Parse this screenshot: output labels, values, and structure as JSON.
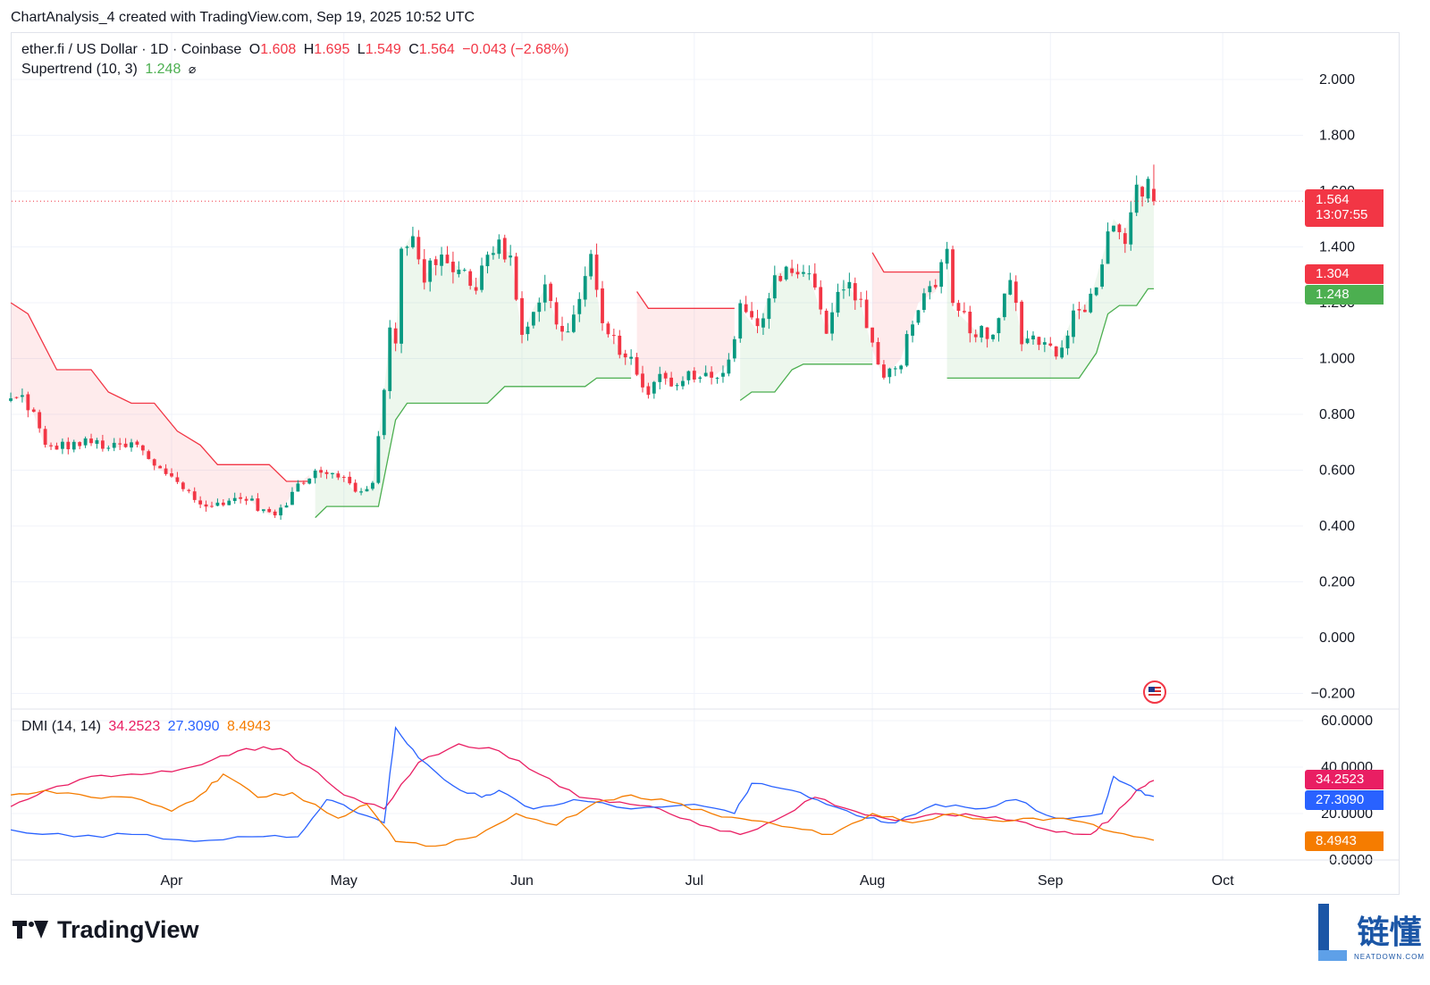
{
  "caption": "ChartAnalysis_4 created with TradingView.com, Sep 19, 2025 10:52 UTC",
  "legend": {
    "symbol": "ether.fi / US Dollar · 1D · Coinbase",
    "o_label": "O",
    "o_value": "1.608",
    "h_label": "H",
    "h_value": "1.695",
    "l_label": "L",
    "l_value": "1.549",
    "c_label": "C",
    "c_value": "1.564",
    "change": "−0.043 (−2.68%)",
    "supertrend_label": "Supertrend (10, 3)",
    "supertrend_value": "1.248",
    "supertrend_icon": "hidden-eye-icon"
  },
  "dmi_legend": {
    "label": "DMI (14, 14)",
    "plus_di": "34.2523",
    "minus_di": "27.3090",
    "adx": "8.4943"
  },
  "badges": {
    "price": "1.564",
    "countdown": "13:07:55",
    "supertrend_red": "1.304",
    "supertrend_green": "1.248",
    "plus_di": "34.2523",
    "minus_di": "27.3090",
    "adx": "8.4943"
  },
  "colors": {
    "up": "#089981",
    "down": "#f23645",
    "st_up": "#4caf50",
    "st_down": "#f23645",
    "plus_di": "#e91e63",
    "minus_di": "#2962ff",
    "adx": "#f57c00"
  },
  "brand": {
    "name": "TradingView"
  },
  "watermark": {
    "cn": "链懂",
    "en": "NEATDOWN.COM"
  },
  "chart_data": [
    {
      "type": "candlestick",
      "title": "ether.fi / US Dollar · 1D · Coinbase",
      "x_start": "2025-03-04",
      "x_end": "2025-09-19",
      "x_ticks": [
        "Apr",
        "May",
        "Jun",
        "Jul",
        "Aug",
        "Sep",
        "Oct"
      ],
      "y_ticks": [
        "2.000",
        "1.800",
        "1.600",
        "1.400",
        "1.200",
        "1.000",
        "0.800",
        "0.600",
        "0.400",
        "0.200",
        "0.000",
        "−0.200"
      ],
      "ylim": [
        -0.2,
        2.0
      ],
      "last_candle": {
        "open": 1.608,
        "high": 1.695,
        "low": 1.549,
        "close": 1.564
      },
      "close_anchors": [
        [
          "2025-03-04",
          0.85
        ],
        [
          "2025-03-06",
          0.86
        ],
        [
          "2025-03-08",
          0.8
        ],
        [
          "2025-03-10",
          0.68
        ],
        [
          "2025-03-14",
          0.69
        ],
        [
          "2025-03-18",
          0.7
        ],
        [
          "2025-03-22",
          0.68
        ],
        [
          "2025-03-26",
          0.69
        ],
        [
          "2025-03-29",
          0.61
        ],
        [
          "2025-04-01",
          0.58
        ],
        [
          "2025-04-04",
          0.52
        ],
        [
          "2025-04-07",
          0.46
        ],
        [
          "2025-04-10",
          0.49
        ],
        [
          "2025-04-14",
          0.5
        ],
        [
          "2025-04-18",
          0.44
        ],
        [
          "2025-04-20",
          0.45
        ],
        [
          "2025-04-23",
          0.55
        ],
        [
          "2025-04-26",
          0.6
        ],
        [
          "2025-04-30",
          0.59
        ],
        [
          "2025-05-03",
          0.52
        ],
        [
          "2025-05-06",
          0.55
        ],
        [
          "2025-05-08",
          0.88
        ],
        [
          "2025-05-09",
          1.1
        ],
        [
          "2025-05-10",
          1.05
        ],
        [
          "2025-05-11",
          1.38
        ],
        [
          "2025-05-13",
          1.45
        ],
        [
          "2025-05-15",
          1.3
        ],
        [
          "2025-05-18",
          1.35
        ],
        [
          "2025-05-21",
          1.33
        ],
        [
          "2025-05-24",
          1.27
        ],
        [
          "2025-05-27",
          1.4
        ],
        [
          "2025-05-30",
          1.38
        ],
        [
          "2025-06-01",
          1.08
        ],
        [
          "2025-06-03",
          1.18
        ],
        [
          "2025-06-05",
          1.25
        ],
        [
          "2025-06-08",
          1.08
        ],
        [
          "2025-06-11",
          1.2
        ],
        [
          "2025-06-13",
          1.38
        ],
        [
          "2025-06-15",
          1.1
        ],
        [
          "2025-06-18",
          1.04
        ],
        [
          "2025-06-20",
          0.98
        ],
        [
          "2025-06-23",
          0.88
        ],
        [
          "2025-06-25",
          0.93
        ],
        [
          "2025-06-28",
          0.9
        ],
        [
          "2025-07-01",
          0.95
        ],
        [
          "2025-07-04",
          0.93
        ],
        [
          "2025-07-07",
          0.98
        ],
        [
          "2025-07-09",
          1.18
        ],
        [
          "2025-07-12",
          1.1
        ],
        [
          "2025-07-15",
          1.3
        ],
        [
          "2025-07-18",
          1.33
        ],
        [
          "2025-07-21",
          1.3
        ],
        [
          "2025-07-24",
          1.1
        ],
        [
          "2025-07-27",
          1.28
        ],
        [
          "2025-07-30",
          1.2
        ],
        [
          "2025-08-01",
          1.03
        ],
        [
          "2025-08-03",
          0.93
        ],
        [
          "2025-08-06",
          1.0
        ],
        [
          "2025-08-09",
          1.2
        ],
        [
          "2025-08-12",
          1.24
        ],
        [
          "2025-08-14",
          1.38
        ],
        [
          "2025-08-15",
          1.18
        ],
        [
          "2025-08-19",
          1.1
        ],
        [
          "2025-08-22",
          1.06
        ],
        [
          "2025-08-25",
          1.29
        ],
        [
          "2025-08-27",
          1.08
        ],
        [
          "2025-08-30",
          1.07
        ],
        [
          "2025-09-02",
          1.02
        ],
        [
          "2025-09-05",
          1.15
        ],
        [
          "2025-09-08",
          1.22
        ],
        [
          "2025-09-10",
          1.36
        ],
        [
          "2025-09-12",
          1.5
        ],
        [
          "2025-09-14",
          1.45
        ],
        [
          "2025-09-16",
          1.63
        ],
        [
          "2025-09-18",
          1.608
        ],
        [
          "2025-09-19",
          1.564
        ]
      ],
      "supertrend": [
        {
          "trend": "down",
          "points": [
            [
              "2025-03-04",
              1.2
            ],
            [
              "2025-03-07",
              1.16
            ],
            [
              "2025-03-12",
              0.96
            ],
            [
              "2025-03-18",
              0.96
            ],
            [
              "2025-03-21",
              0.88
            ],
            [
              "2025-03-25",
              0.84
            ],
            [
              "2025-03-29",
              0.84
            ],
            [
              "2025-04-02",
              0.74
            ],
            [
              "2025-04-06",
              0.69
            ],
            [
              "2025-04-09",
              0.62
            ],
            [
              "2025-04-18",
              0.62
            ],
            [
              "2025-04-21",
              0.56
            ],
            [
              "2025-04-25",
              0.56
            ]
          ]
        },
        {
          "trend": "up",
          "points": [
            [
              "2025-04-26",
              0.43
            ],
            [
              "2025-04-28",
              0.47
            ],
            [
              "2025-05-07",
              0.47
            ],
            [
              "2025-05-10",
              0.78
            ],
            [
              "2025-05-12",
              0.84
            ],
            [
              "2025-05-26",
              0.84
            ],
            [
              "2025-05-29",
              0.9
            ],
            [
              "2025-06-12",
              0.9
            ],
            [
              "2025-06-14",
              0.93
            ],
            [
              "2025-06-20",
              0.93
            ]
          ]
        },
        {
          "trend": "down",
          "points": [
            [
              "2025-06-21",
              1.24
            ],
            [
              "2025-06-23",
              1.18
            ],
            [
              "2025-07-08",
              1.18
            ]
          ]
        },
        {
          "trend": "up",
          "points": [
            [
              "2025-07-09",
              0.85
            ],
            [
              "2025-07-11",
              0.88
            ],
            [
              "2025-07-15",
              0.88
            ],
            [
              "2025-07-18",
              0.96
            ],
            [
              "2025-07-20",
              0.98
            ],
            [
              "2025-08-01",
              0.98
            ]
          ]
        },
        {
          "trend": "down",
          "points": [
            [
              "2025-08-01",
              1.38
            ],
            [
              "2025-08-03",
              1.31
            ],
            [
              "2025-08-13",
              1.31
            ]
          ]
        },
        {
          "trend": "up",
          "points": [
            [
              "2025-08-14",
              0.93
            ],
            [
              "2025-09-06",
              0.93
            ],
            [
              "2025-09-09",
              1.02
            ],
            [
              "2025-09-11",
              1.16
            ],
            [
              "2025-09-13",
              1.19
            ],
            [
              "2025-09-16",
              1.19
            ],
            [
              "2025-09-18",
              1.25
            ],
            [
              "2025-09-19",
              1.25
            ]
          ]
        }
      ]
    },
    {
      "type": "line",
      "title": "DMI (14, 14)",
      "y_ticks": [
        "60.0000",
        "40.0000",
        "20.0000",
        "0.0000"
      ],
      "ylim": [
        0,
        60
      ],
      "series": [
        {
          "name": "34.2523",
          "color": "#e91e63",
          "points": [
            [
              "2025-03-04",
              23
            ],
            [
              "2025-03-10",
              30
            ],
            [
              "2025-03-18",
              36
            ],
            [
              "2025-03-25",
              37
            ],
            [
              "2025-04-01",
              38
            ],
            [
              "2025-04-08",
              43
            ],
            [
              "2025-04-14",
              48
            ],
            [
              "2025-04-20",
              48
            ],
            [
              "2025-04-25",
              40
            ],
            [
              "2025-05-01",
              28
            ],
            [
              "2025-05-08",
              22
            ],
            [
              "2025-05-14",
              42
            ],
            [
              "2025-05-21",
              50
            ],
            [
              "2025-05-28",
              47
            ],
            [
              "2025-06-04",
              37
            ],
            [
              "2025-06-11",
              27
            ],
            [
              "2025-06-18",
              25
            ],
            [
              "2025-06-25",
              22
            ],
            [
              "2025-07-02",
              15
            ],
            [
              "2025-07-09",
              11
            ],
            [
              "2025-07-15",
              17
            ],
            [
              "2025-07-22",
              27
            ],
            [
              "2025-07-29",
              21
            ],
            [
              "2025-08-05",
              17
            ],
            [
              "2025-08-12",
              20
            ],
            [
              "2025-08-19",
              19
            ],
            [
              "2025-08-26",
              17
            ],
            [
              "2025-09-02",
              12
            ],
            [
              "2025-09-08",
              11
            ],
            [
              "2025-09-12",
              19
            ],
            [
              "2025-09-16",
              30
            ],
            [
              "2025-09-19",
              34.2523
            ]
          ]
        },
        {
          "name": "27.3090",
          "color": "#2962ff",
          "points": [
            [
              "2025-03-04",
              13
            ],
            [
              "2025-03-15",
              10
            ],
            [
              "2025-03-25",
              11
            ],
            [
              "2025-04-05",
              8
            ],
            [
              "2025-04-15",
              10
            ],
            [
              "2025-04-23",
              10
            ],
            [
              "2025-04-28",
              26
            ],
            [
              "2025-05-02",
              22
            ],
            [
              "2025-05-08",
              16
            ],
            [
              "2025-05-10",
              57
            ],
            [
              "2025-05-14",
              44
            ],
            [
              "2025-05-20",
              32
            ],
            [
              "2025-05-25",
              27
            ],
            [
              "2025-05-28",
              30
            ],
            [
              "2025-06-03",
              22
            ],
            [
              "2025-06-10",
              26
            ],
            [
              "2025-06-20",
              22
            ],
            [
              "2025-07-01",
              24
            ],
            [
              "2025-07-08",
              20
            ],
            [
              "2025-07-11",
              33
            ],
            [
              "2025-07-18",
              30
            ],
            [
              "2025-07-24",
              24
            ],
            [
              "2025-07-31",
              18
            ],
            [
              "2025-08-05",
              16
            ],
            [
              "2025-08-12",
              24
            ],
            [
              "2025-08-19",
              22
            ],
            [
              "2025-08-26",
              26
            ],
            [
              "2025-09-02",
              18
            ],
            [
              "2025-09-10",
              20
            ],
            [
              "2025-09-12",
              36
            ],
            [
              "2025-09-16",
              30
            ],
            [
              "2025-09-19",
              27.309
            ]
          ]
        },
        {
          "name": "8.4943",
          "color": "#f57c00",
          "points": [
            [
              "2025-03-04",
              28
            ],
            [
              "2025-03-10",
              30
            ],
            [
              "2025-03-18",
              27
            ],
            [
              "2025-03-25",
              27
            ],
            [
              "2025-04-01",
              21
            ],
            [
              "2025-04-06",
              28
            ],
            [
              "2025-04-10",
              37
            ],
            [
              "2025-04-16",
              27
            ],
            [
              "2025-04-22",
              29
            ],
            [
              "2025-04-30",
              18
            ],
            [
              "2025-05-05",
              24
            ],
            [
              "2025-05-10",
              8
            ],
            [
              "2025-05-17",
              6
            ],
            [
              "2025-05-24",
              10
            ],
            [
              "2025-05-31",
              20
            ],
            [
              "2025-06-07",
              15
            ],
            [
              "2025-06-14",
              25
            ],
            [
              "2025-06-20",
              28
            ],
            [
              "2025-06-27",
              25
            ],
            [
              "2025-07-04",
              20
            ],
            [
              "2025-07-11",
              17
            ],
            [
              "2025-07-18",
              14
            ],
            [
              "2025-07-25",
              11
            ],
            [
              "2025-08-01",
              20
            ],
            [
              "2025-08-08",
              16
            ],
            [
              "2025-08-15",
              20
            ],
            [
              "2025-08-22",
              17
            ],
            [
              "2025-08-29",
              18
            ],
            [
              "2025-09-05",
              17
            ],
            [
              "2025-09-12",
              12
            ],
            [
              "2025-09-19",
              8.4943
            ]
          ]
        }
      ]
    }
  ]
}
